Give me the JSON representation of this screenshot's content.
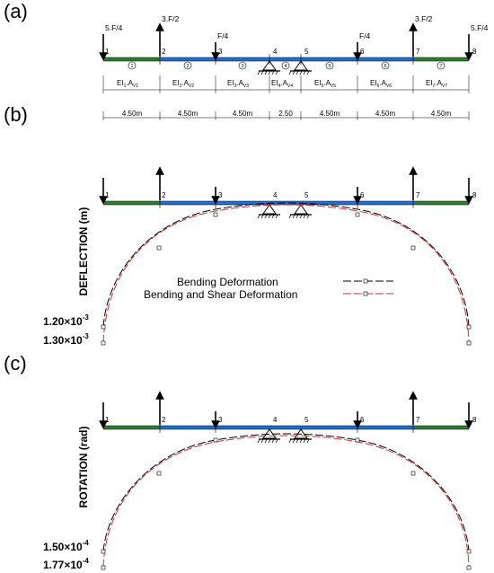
{
  "panels": {
    "a": "(a)",
    "b": "(b)",
    "c": "(c)"
  },
  "nodes": [
    "1",
    "2",
    "3",
    "4",
    "5",
    "6",
    "7",
    "8"
  ],
  "loads": [
    {
      "label": "5.F/4",
      "dir": "down"
    },
    {
      "label": "3.F/2",
      "dir": "up"
    },
    {
      "label": "F/4",
      "dir": "down"
    },
    {
      "label": "F/4",
      "dir": "down"
    },
    {
      "label": "3.F/2",
      "dir": "up"
    },
    {
      "label": "5.F/4",
      "dir": "down"
    }
  ],
  "elements": [
    "1",
    "2",
    "3",
    "4",
    "5",
    "6",
    "7"
  ],
  "properties": [
    {
      "ei": "EI",
      "a": "A",
      "i": "1"
    },
    {
      "ei": "EI",
      "a": "A",
      "i": "2"
    },
    {
      "ei": "EI",
      "a": "A",
      "i": "3"
    },
    {
      "ei": "EI",
      "a": "A",
      "i": "4"
    },
    {
      "ei": "EI",
      "a": "A",
      "i": "5"
    },
    {
      "ei": "EI",
      "a": "A",
      "i": "6"
    },
    {
      "ei": "EI",
      "a": "A",
      "i": "7"
    }
  ],
  "spans": [
    "4.50m",
    "4.50m",
    "4.50m",
    "2.50",
    "4.50m",
    "4.50m",
    "4.50m"
  ],
  "deflection": {
    "ylabel": "DEFLECTION (m)",
    "val1": "1.20×10",
    "val1_exp": "-3",
    "val2": "1.30×10",
    "val2_exp": "-3"
  },
  "rotation": {
    "ylabel": "ROTATION (rad)",
    "val1": "1.50×10",
    "val1_exp": "-4",
    "val2": "1.77×10",
    "val2_exp": "-4"
  },
  "legend": {
    "bending": "Bending Deformation",
    "bending_shear": "Bending and Shear Deformation"
  },
  "colors": {
    "beam_outer": "#2e7d32",
    "beam_inner": "#1f6fd1",
    "bending": "#000000",
    "bending_shear": "#d32f2f"
  }
}
